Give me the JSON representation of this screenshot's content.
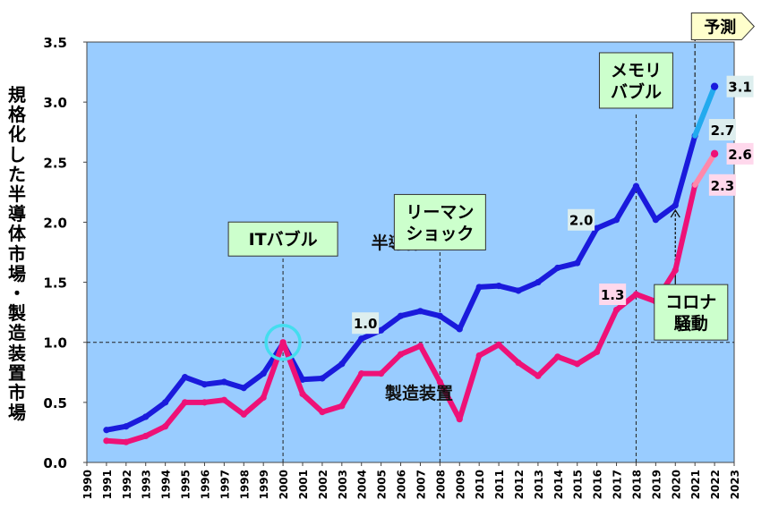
{
  "chart_data": {
    "type": "line",
    "ylabel": "規格化した半導体市場・製造装置市場",
    "ylim": [
      0,
      3.5
    ],
    "yticks": [
      "0.0",
      "0.5",
      "1.0",
      "1.5",
      "2.0",
      "2.5",
      "3.0",
      "3.5"
    ],
    "xlim": [
      1990,
      2023
    ],
    "x": [
      1991,
      1992,
      1993,
      1994,
      1995,
      1996,
      1997,
      1998,
      1999,
      2000,
      2001,
      2002,
      2003,
      2004,
      2005,
      2006,
      2007,
      2008,
      2009,
      2010,
      2011,
      2012,
      2013,
      2014,
      2015,
      2016,
      2017,
      2018,
      2019,
      2020,
      2021
    ],
    "xtick_labels": [
      "1990",
      "1991",
      "1992",
      "1993",
      "1994",
      "1995",
      "1996",
      "1997",
      "1998",
      "1999",
      "2000",
      "2001",
      "2002",
      "2003",
      "2004",
      "2005",
      "2006",
      "2007",
      "2008",
      "2009",
      "2010",
      "2011",
      "2012",
      "2013",
      "2014",
      "2015",
      "2016",
      "2017",
      "2018",
      "2019",
      "2020",
      "2021",
      "2022",
      "2023"
    ],
    "reference_line": 1.0,
    "series": [
      {
        "name": "半導体",
        "color": "#1a1adc",
        "values": [
          0.27,
          0.3,
          0.38,
          0.5,
          0.71,
          0.65,
          0.67,
          0.62,
          0.74,
          0.99,
          0.69,
          0.7,
          0.82,
          1.03,
          1.1,
          1.22,
          1.26,
          1.22,
          1.11,
          1.46,
          1.47,
          1.43,
          1.5,
          1.62,
          1.66,
          1.95,
          2.02,
          2.3,
          2.02,
          2.14,
          2.72
        ],
        "forecast": {
          "x": [
            2021,
            2022
          ],
          "values": [
            2.72,
            3.13
          ],
          "color": "#22aaee"
        }
      },
      {
        "name": "製造装置",
        "color": "#ee1177",
        "values": [
          0.18,
          0.17,
          0.22,
          0.3,
          0.5,
          0.5,
          0.52,
          0.4,
          0.54,
          1.0,
          0.57,
          0.42,
          0.47,
          0.74,
          0.74,
          0.9,
          0.97,
          0.67,
          0.36,
          0.89,
          0.98,
          0.83,
          0.72,
          0.88,
          0.82,
          0.92,
          1.27,
          1.4,
          1.34,
          1.6,
          2.31
        ],
        "forecast": {
          "x": [
            2021,
            2022
          ],
          "values": [
            2.31,
            2.57
          ],
          "color": "#ff88aa"
        }
      }
    ],
    "series_labels": [
      {
        "text": "半導体",
        "series": 0,
        "x": 2004.5,
        "y": 1.78
      },
      {
        "text": "製造装置",
        "series": 1,
        "x": 2005.2,
        "y": 0.53
      }
    ],
    "annotations": [
      {
        "lines": [
          "ITバブル"
        ],
        "x": 2000,
        "y": 1.86,
        "leader": [
          2000,
          0.0,
          1.71
        ]
      },
      {
        "lines": [
          "リーマン",
          "ショック"
        ],
        "x": 2008,
        "y": 2.0,
        "leader": [
          2008,
          0.0,
          1.78
        ]
      },
      {
        "lines": [
          "メモリ",
          "バブル"
        ],
        "x": 2018,
        "y": 3.18,
        "leader": [
          2018,
          0.0,
          2.9
        ]
      },
      {
        "lines": [
          "コロナ",
          "騒動"
        ],
        "x": 2020.8,
        "y": 1.25
      },
      {
        "lines": [
          "予測"
        ],
        "x": 2022.1,
        "y": 3.63,
        "arrow": true
      }
    ],
    "data_labels": [
      {
        "text": "1.0",
        "x": 2004.2,
        "y": 1.16,
        "bg": "#ddeeee"
      },
      {
        "text": "2.0",
        "x": 2015.2,
        "y": 2.02,
        "bg": "#ddeeee"
      },
      {
        "text": "2.7",
        "x": 2022.4,
        "y": 2.77,
        "bg": "#ddeeee"
      },
      {
        "text": "3.1",
        "x": 2023.3,
        "y": 3.13,
        "bg": "#ddeeee"
      },
      {
        "text": "1.3",
        "x": 2016.8,
        "y": 1.4,
        "bg": "#ffd8ec"
      },
      {
        "text": "2.3",
        "x": 2022.4,
        "y": 2.31,
        "bg": "#ffd8ec"
      },
      {
        "text": "2.6",
        "x": 2023.3,
        "y": 2.57,
        "bg": "#ffd8ec"
      }
    ],
    "highlight_circle": {
      "x": 2000,
      "y": 1.0
    },
    "corona_arrows": [
      {
        "x": 2020,
        "from": 1.6,
        "to": 2.1
      }
    ],
    "forecast_divider_x": 2021
  }
}
